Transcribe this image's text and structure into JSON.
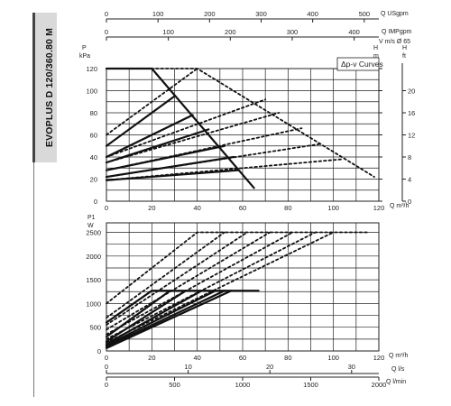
{
  "side_label": "EVOPLUS D 120/360.80 M",
  "upper_axes": {
    "top_scale_1": {
      "label": "Q USgpm",
      "ticks": [
        "0",
        "100",
        "200",
        "300",
        "400",
        "500"
      ]
    },
    "top_scale_2": {
      "label": "Q IMPgpm",
      "ticks": [
        "0",
        "100",
        "200",
        "300",
        "400"
      ]
    },
    "velocity_label": "V m/s Ø 65",
    "left_unit_1": "P",
    "left_unit_2": "kPa",
    "right_unit_1": "H",
    "right_unit_2": "m",
    "right_unit_3": "H",
    "right_unit_4": "ft",
    "y_ticks": [
      "0",
      "20",
      "40",
      "60",
      "80",
      "100",
      "120"
    ],
    "h_ft_ticks": [
      "0",
      "4",
      "8",
      "12",
      "16",
      "20"
    ],
    "x_ticks": [
      "0",
      "20",
      "40",
      "60",
      "80",
      "100",
      "120"
    ],
    "x_label": "Q m³/h"
  },
  "legend": {
    "text": "Δp-v Curves"
  },
  "lower_axes": {
    "y_unit_1": "P1",
    "y_unit_2": "W",
    "y_ticks": [
      "0",
      "500",
      "1000",
      "1500",
      "2000",
      "2500"
    ],
    "x_ticks": [
      "0",
      "20",
      "40",
      "60",
      "80",
      "100",
      "120"
    ],
    "x_label": "Q m³/h",
    "ls_ticks": [
      "0",
      "10",
      "20",
      "30"
    ],
    "ls_label": "Q l/s",
    "lmin_ticks": [
      "0",
      "500",
      "1000",
      "1500",
      "2000"
    ],
    "lmin_label": "Q l/min"
  },
  "chart_data": [
    {
      "type": "line",
      "x_unit": "Q m³/h",
      "y_unit": "P kPa",
      "xlim": [
        0,
        120
      ],
      "ylim": [
        0,
        120
      ],
      "grid": true,
      "series": [
        {
          "style": "solid",
          "points": [
            [
              0,
              120
            ],
            [
              20,
              120
            ],
            [
              65,
              12
            ]
          ]
        },
        {
          "style": "solid",
          "points": [
            [
              0,
              50
            ],
            [
              30,
              95
            ]
          ]
        },
        {
          "style": "solid",
          "points": [
            [
              0,
              40
            ],
            [
              38,
              78
            ]
          ]
        },
        {
          "style": "solid",
          "points": [
            [
              0,
              35
            ],
            [
              45,
              65
            ]
          ]
        },
        {
          "style": "solid",
          "points": [
            [
              0,
              28
            ],
            [
              52,
              50
            ]
          ]
        },
        {
          "style": "solid",
          "points": [
            [
              0,
              22
            ],
            [
              56,
              40
            ]
          ]
        },
        {
          "style": "solid",
          "points": [
            [
              0,
              19
            ],
            [
              58,
              28
            ]
          ]
        },
        {
          "style": "dotted",
          "points": [
            [
              0,
              120
            ],
            [
              40,
              120
            ],
            [
              118,
              22
            ]
          ]
        },
        {
          "style": "dotted",
          "points": [
            [
              0,
              60
            ],
            [
              40,
              120
            ]
          ]
        },
        {
          "style": "dotted",
          "points": [
            [
              0,
              40
            ],
            [
              70,
              92
            ]
          ]
        },
        {
          "style": "dotted",
          "points": [
            [
              0,
              35
            ],
            [
              76,
              80
            ]
          ]
        },
        {
          "style": "dotted",
          "points": [
            [
              0,
              28
            ],
            [
              86,
              66
            ]
          ]
        },
        {
          "style": "dotted",
          "points": [
            [
              0,
              22
            ],
            [
              95,
              52
            ]
          ]
        },
        {
          "style": "dotted",
          "points": [
            [
              0,
              19
            ],
            [
              104,
              38
            ]
          ]
        }
      ]
    },
    {
      "type": "line",
      "x_unit": "Q m³/h",
      "y_unit": "P1 W",
      "xlim": [
        0,
        120
      ],
      "ylim": [
        0,
        2700
      ],
      "grid": true,
      "series": [
        {
          "style": "solid",
          "points": [
            [
              0,
              600
            ],
            [
              20,
              1270
            ],
            [
              67,
              1270
            ]
          ]
        },
        {
          "style": "solid",
          "points": [
            [
              0,
              300
            ],
            [
              28,
              1270
            ]
          ]
        },
        {
          "style": "solid",
          "points": [
            [
              0,
              200
            ],
            [
              35,
              1270
            ]
          ]
        },
        {
          "style": "solid",
          "points": [
            [
              0,
              150
            ],
            [
              42,
              1270
            ]
          ]
        },
        {
          "style": "solid",
          "points": [
            [
              0,
              120
            ],
            [
              48,
              1270
            ]
          ]
        },
        {
          "style": "solid",
          "points": [
            [
              0,
              90
            ],
            [
              52,
              1270
            ]
          ]
        },
        {
          "style": "solid",
          "points": [
            [
              0,
              60
            ],
            [
              55,
              1270
            ]
          ]
        },
        {
          "style": "dotted",
          "points": [
            [
              0,
              1000
            ],
            [
              40,
              2500
            ],
            [
              115,
              2500
            ]
          ]
        },
        {
          "style": "dotted",
          "points": [
            [
              0,
              700
            ],
            [
              52,
              2500
            ]
          ]
        },
        {
          "style": "dotted",
          "points": [
            [
              0,
              550
            ],
            [
              62,
              2500
            ]
          ]
        },
        {
          "style": "dotted",
          "points": [
            [
              0,
              450
            ],
            [
              72,
              2500
            ]
          ]
        },
        {
          "style": "dotted",
          "points": [
            [
              0,
              350
            ],
            [
              82,
              2500
            ]
          ]
        },
        {
          "style": "dotted",
          "points": [
            [
              0,
              250
            ],
            [
              92,
              2500
            ]
          ]
        },
        {
          "style": "dotted",
          "points": [
            [
              0,
              180
            ],
            [
              100,
              2500
            ]
          ]
        }
      ]
    }
  ]
}
